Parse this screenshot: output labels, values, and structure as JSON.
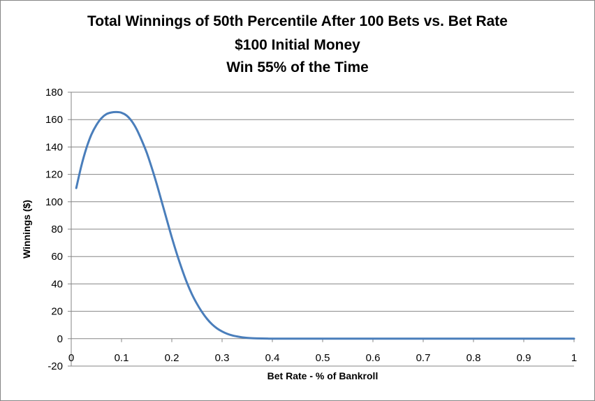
{
  "chart_data": {
    "type": "line",
    "title_lines": [
      "Total Winnings of 50th Percentile After 100 Bets vs. Bet Rate",
      "$100 Initial Money",
      "Win 55% of the Time"
    ],
    "xlabel": "Bet Rate - % of Bankroll",
    "ylabel": "Winnings ($)",
    "xlim": [
      0,
      1
    ],
    "ylim": [
      -20,
      180
    ],
    "x_ticks": [
      "0",
      "0.1",
      "0.2",
      "0.3",
      "0.4",
      "0.5",
      "0.6",
      "0.7",
      "0.8",
      "0.9",
      "1"
    ],
    "y_ticks": [
      "-20",
      "0",
      "20",
      "40",
      "60",
      "80",
      "100",
      "120",
      "140",
      "160",
      "180"
    ],
    "grid": "horizontal",
    "series_color": "#4a7ebb",
    "x": [
      0.01,
      0.02,
      0.03,
      0.04,
      0.05,
      0.06,
      0.07,
      0.08,
      0.09,
      0.1,
      0.11,
      0.12,
      0.13,
      0.14,
      0.15,
      0.16,
      0.17,
      0.18,
      0.19,
      0.2,
      0.21,
      0.22,
      0.23,
      0.24,
      0.25,
      0.26,
      0.27,
      0.28,
      0.29,
      0.3,
      0.31,
      0.32,
      0.33,
      0.34,
      0.35,
      0.36,
      0.37,
      0.38,
      0.39,
      0.4,
      0.42,
      0.44,
      0.46,
      0.48,
      0.5,
      0.55,
      0.6,
      0.7,
      0.8,
      0.9,
      1.0
    ],
    "values": [
      110,
      126,
      139,
      149,
      156,
      161,
      164,
      165.2,
      165.5,
      165,
      163,
      159,
      153,
      145,
      136,
      125,
      113,
      100,
      87,
      74,
      62,
      51,
      41,
      32.5,
      25.5,
      19.5,
      14.5,
      10.5,
      7.5,
      5.3,
      3.6,
      2.4,
      1.6,
      1.0,
      0.6,
      0.35,
      0.2,
      0.12,
      0.06,
      0.03,
      0.01,
      0,
      0,
      0,
      0,
      0,
      0,
      0,
      0,
      0,
      0
    ]
  }
}
